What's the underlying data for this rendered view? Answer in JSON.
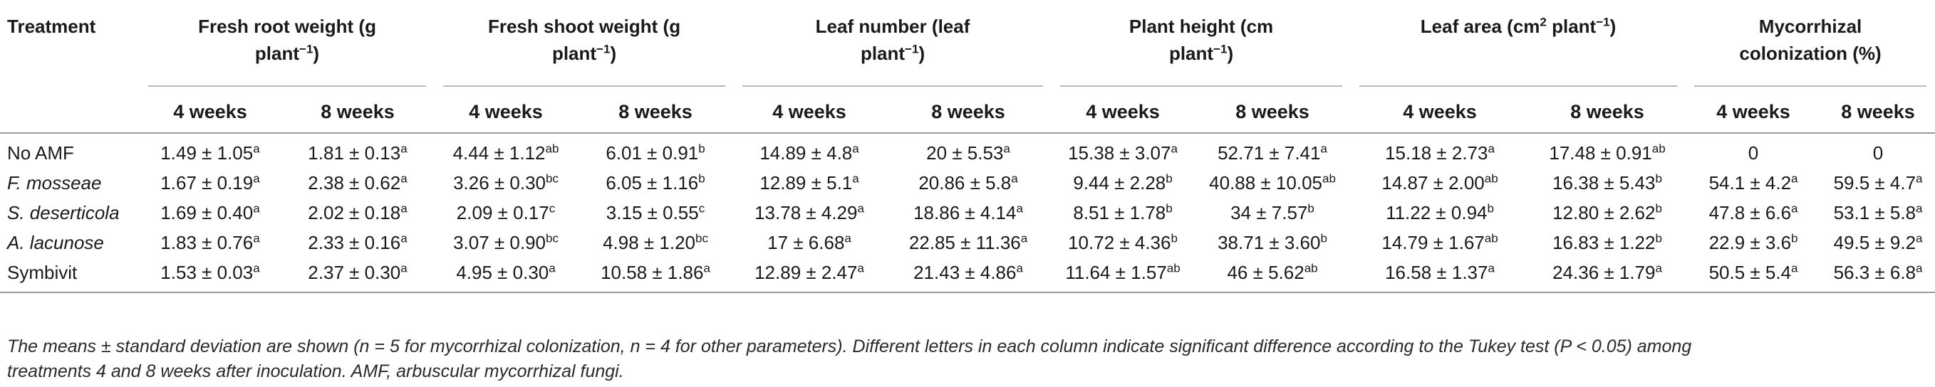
{
  "header": {
    "treatment": "Treatment",
    "groups": [
      {
        "line1": "Fresh root weight (g",
        "line2": "plant",
        "sup": "−1",
        "tail": ")"
      },
      {
        "line1": "Fresh shoot weight (g",
        "line2": "plant",
        "sup": "−1",
        "tail": ")"
      },
      {
        "line1": "Leaf number (leaf",
        "line2": "plant",
        "sup": "−1",
        "tail": ")"
      },
      {
        "line1": "Plant height (cm",
        "line2": "plant",
        "sup": "−1",
        "tail": ")"
      },
      {
        "line1a": "Leaf area (cm",
        "sup1": "2",
        "line1b": " plant",
        "sup2": "−1",
        "tail": ")"
      },
      {
        "line1": "Mycorrhizal",
        "line2": "colonization (%)"
      }
    ],
    "weeks": [
      "4 weeks",
      "8 weeks"
    ]
  },
  "rows": [
    {
      "treatment": "No AMF",
      "italic": false,
      "cells": [
        {
          "v": "1.49 ± 1.05",
          "s": "a"
        },
        {
          "v": "1.81 ± 0.13",
          "s": "a"
        },
        {
          "v": "4.44 ± 1.12",
          "s": "ab"
        },
        {
          "v": "6.01 ± 0.91",
          "s": "b"
        },
        {
          "v": "14.89 ± 4.8",
          "s": "a"
        },
        {
          "v": "20 ± 5.53",
          "s": "a"
        },
        {
          "v": "15.38 ± 3.07",
          "s": "a"
        },
        {
          "v": "52.71 ± 7.41",
          "s": "a"
        },
        {
          "v": "15.18 ± 2.73",
          "s": "a"
        },
        {
          "v": "17.48 ± 0.91",
          "s": "ab"
        },
        {
          "v": "0",
          "s": ""
        },
        {
          "v": "0",
          "s": ""
        }
      ]
    },
    {
      "treatment": "F. mosseae",
      "italic": true,
      "cells": [
        {
          "v": "1.67 ± 0.19",
          "s": "a"
        },
        {
          "v": "2.38 ± 0.62",
          "s": "a"
        },
        {
          "v": "3.26 ± 0.30",
          "s": "bc"
        },
        {
          "v": "6.05 ± 1.16",
          "s": "b"
        },
        {
          "v": "12.89 ± 5.1",
          "s": "a"
        },
        {
          "v": "20.86 ± 5.8",
          "s": "a"
        },
        {
          "v": "9.44 ± 2.28",
          "s": "b"
        },
        {
          "v": "40.88 ± 10.05",
          "s": "ab"
        },
        {
          "v": "14.87 ± 2.00",
          "s": "ab"
        },
        {
          "v": "16.38 ± 5.43",
          "s": "b"
        },
        {
          "v": "54.1 ± 4.2",
          "s": "a"
        },
        {
          "v": "59.5 ± 4.7",
          "s": "a"
        }
      ]
    },
    {
      "treatment": "S. deserticola",
      "italic": true,
      "cells": [
        {
          "v": "1.69 ± 0.40",
          "s": "a"
        },
        {
          "v": "2.02 ± 0.18",
          "s": "a"
        },
        {
          "v": "2.09 ± 0.17",
          "s": "c"
        },
        {
          "v": "3.15 ± 0.55",
          "s": "c"
        },
        {
          "v": "13.78 ± 4.29",
          "s": "a"
        },
        {
          "v": "18.86 ± 4.14",
          "s": "a"
        },
        {
          "v": "8.51 ± 1.78",
          "s": "b"
        },
        {
          "v": "34 ± 7.57",
          "s": "b"
        },
        {
          "v": "11.22 ± 0.94",
          "s": "b"
        },
        {
          "v": "12.80 ± 2.62",
          "s": "b"
        },
        {
          "v": "47.8 ± 6.6",
          "s": "a"
        },
        {
          "v": "53.1 ± 5.8",
          "s": "a"
        }
      ]
    },
    {
      "treatment": "A. lacunose",
      "italic": true,
      "cells": [
        {
          "v": "1.83 ± 0.76",
          "s": "a"
        },
        {
          "v": "2.33 ± 0.16",
          "s": "a"
        },
        {
          "v": "3.07 ± 0.90",
          "s": "bc"
        },
        {
          "v": "4.98 ± 1.20",
          "s": "bc"
        },
        {
          "v": "17 ± 6.68",
          "s": "a"
        },
        {
          "v": "22.85 ± 11.36",
          "s": "a"
        },
        {
          "v": "10.72 ± 4.36",
          "s": "b"
        },
        {
          "v": "38.71 ± 3.60",
          "s": "b"
        },
        {
          "v": "14.79 ± 1.67",
          "s": "ab"
        },
        {
          "v": "16.83 ± 1.22",
          "s": "b"
        },
        {
          "v": "22.9 ± 3.6",
          "s": "b"
        },
        {
          "v": "49.5 ± 9.2",
          "s": "a"
        }
      ]
    },
    {
      "treatment": "Symbivit",
      "italic": false,
      "cells": [
        {
          "v": "1.53 ± 0.03",
          "s": "a"
        },
        {
          "v": "2.37 ± 0.30",
          "s": "a"
        },
        {
          "v": "4.95 ± 0.30",
          "s": "a"
        },
        {
          "v": "10.58 ± 1.86",
          "s": "a"
        },
        {
          "v": "12.89 ± 2.47",
          "s": "a"
        },
        {
          "v": "21.43 ± 4.86",
          "s": "a"
        },
        {
          "v": "11.64 ± 1.57",
          "s": "ab"
        },
        {
          "v": "46 ± 5.62",
          "s": "ab"
        },
        {
          "v": "16.58 ± 1.37",
          "s": "a"
        },
        {
          "v": "24.36 ± 1.79",
          "s": "a"
        },
        {
          "v": "50.5 ± 5.4",
          "s": "a"
        },
        {
          "v": "56.3 ± 6.8",
          "s": "a"
        }
      ]
    }
  ],
  "footnote": {
    "line1": "The means ± standard deviation are shown (n = 5 for mycorrhizal colonization, n = 4 for other parameters). Different letters in each column indicate significant difference according to the Tukey test (P < 0.05) among",
    "line2": "treatments 4 and 8 weeks after inoculation. AMF, arbuscular mycorrhizal fungi."
  }
}
